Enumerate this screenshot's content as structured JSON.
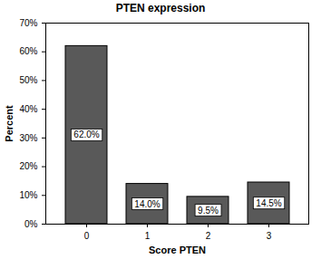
{
  "chart_data": {
    "type": "bar",
    "title": "PTEN expression",
    "x_label": "Score PTEN",
    "y_label": "Percent",
    "categories": [
      "0",
      "1",
      "2",
      "3"
    ],
    "values": [
      62.0,
      14.0,
      9.5,
      14.5
    ],
    "value_labels": [
      "62.0%",
      "14.0%",
      "9.5%",
      "14.5%"
    ],
    "data_labels": true,
    "color": "#595959",
    "ylim": [
      0,
      70
    ],
    "yticks": [
      {
        "value": 0,
        "label": "0%"
      },
      {
        "value": 10,
        "label": "10%"
      },
      {
        "value": 20,
        "label": "20%"
      },
      {
        "value": 30,
        "label": "30%"
      },
      {
        "value": 40,
        "label": "40%"
      },
      {
        "value": 50,
        "label": "50%"
      },
      {
        "value": 60,
        "label": "60%"
      },
      {
        "value": 70,
        "label": "70%"
      }
    ],
    "grid": false
  }
}
